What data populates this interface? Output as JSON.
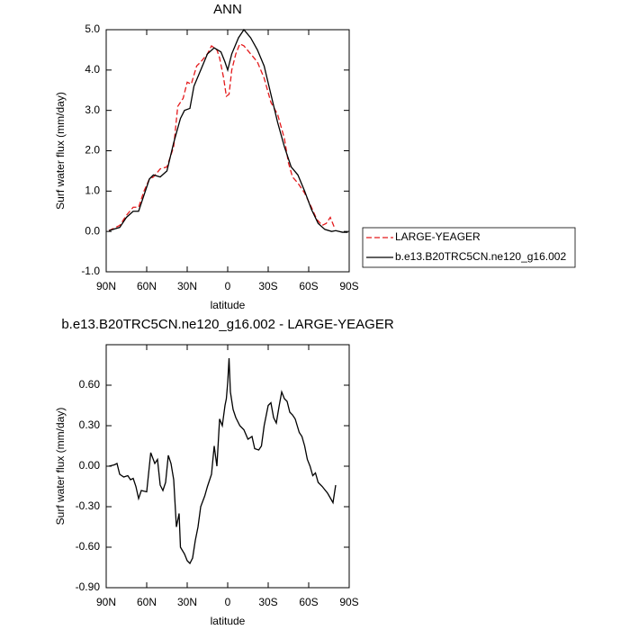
{
  "chart_data": [
    {
      "type": "line",
      "title": "ANN",
      "xlabel": "latitude",
      "ylabel": "Surf water flux (mm/day)",
      "xlim": [
        90,
        -90
      ],
      "xticks": [
        {
          "value": 90,
          "label": "90N"
        },
        {
          "value": 60,
          "label": "60N"
        },
        {
          "value": 30,
          "label": "30N"
        },
        0,
        {
          "value": -30,
          "label": "30S"
        },
        {
          "value": -60,
          "label": "60S"
        },
        {
          "value": -90,
          "label": "90S"
        }
      ],
      "ylim": [
        -1,
        5
      ],
      "yticks": [
        {
          "value": -1,
          "label": "-1.0"
        },
        {
          "value": 0,
          "label": "0.0"
        },
        {
          "value": 1,
          "label": "1.0"
        },
        {
          "value": 2,
          "label": "2.0"
        },
        {
          "value": 3,
          "label": "3.0"
        },
        {
          "value": 4,
          "label": "4.0"
        },
        {
          "value": 5,
          "label": "5.0"
        }
      ],
      "legend": "right",
      "series": [
        {
          "name": "LARGE-YEAGER",
          "color": "#e41a1c",
          "linestyle": "dashed",
          "x": [
            88,
            80,
            75,
            70,
            66,
            62,
            58,
            55,
            50,
            45,
            40,
            37,
            33,
            30,
            27,
            23,
            20,
            15,
            12,
            8,
            6,
            3,
            1,
            -1,
            -3,
            -6,
            -9,
            -12,
            -17,
            -22,
            -27,
            -32,
            -37,
            -42,
            -45,
            -48,
            -52,
            -57,
            -62,
            -66,
            -70,
            -73,
            -76,
            -79
          ],
          "values": [
            0.02,
            0.15,
            0.4,
            0.6,
            0.6,
            1.0,
            1.3,
            1.35,
            1.55,
            1.6,
            2.1,
            3.1,
            3.3,
            3.7,
            3.65,
            4.1,
            4.2,
            4.4,
            4.6,
            4.5,
            4.3,
            3.8,
            3.35,
            3.4,
            4.0,
            4.4,
            4.65,
            4.6,
            4.4,
            4.2,
            3.8,
            3.2,
            2.9,
            2.3,
            1.7,
            1.35,
            1.2,
            0.95,
            0.6,
            0.3,
            0.15,
            0.2,
            0.35,
            0.1
          ]
        },
        {
          "name": "b.e13.B20TRC5CN.ne120_g16.002",
          "color": "#000000",
          "linestyle": "solid",
          "x": [
            88,
            80,
            75,
            70,
            66,
            62,
            58,
            55,
            50,
            45,
            40,
            35,
            32,
            28,
            25,
            20,
            15,
            10,
            5,
            2,
            0,
            -3,
            -8,
            -12,
            -17,
            -22,
            -27,
            -32,
            -37,
            -42,
            -47,
            -52,
            -57,
            -62,
            -67,
            -72,
            -77,
            -80,
            -85,
            -89
          ],
          "values": [
            0.02,
            0.1,
            0.35,
            0.5,
            0.5,
            0.9,
            1.3,
            1.4,
            1.35,
            1.5,
            2.2,
            2.8,
            3.0,
            3.05,
            3.6,
            4.0,
            4.4,
            4.55,
            4.45,
            4.2,
            4.0,
            4.4,
            4.8,
            5.0,
            4.8,
            4.5,
            4.1,
            3.4,
            2.7,
            2.1,
            1.6,
            1.4,
            1.0,
            0.55,
            0.2,
            0.05,
            0.0,
            0.02,
            -0.02,
            -0.02
          ]
        }
      ]
    },
    {
      "type": "line",
      "title": "b.e13.B20TRC5CN.ne120_g16.002 - LARGE-YEAGER",
      "xlabel": "latitude",
      "ylabel": "Surf water flux (mm/day)",
      "xlim": [
        90,
        -90
      ],
      "xticks": [
        {
          "value": 90,
          "label": "90N"
        },
        {
          "value": 60,
          "label": "60N"
        },
        {
          "value": 30,
          "label": "30N"
        },
        0,
        {
          "value": -30,
          "label": "30S"
        },
        {
          "value": -60,
          "label": "60S"
        },
        {
          "value": -90,
          "label": "90S"
        }
      ],
      "ylim": [
        -0.9,
        0.9
      ],
      "yticks": [
        {
          "value": -0.9,
          "label": "-0.90"
        },
        {
          "value": -0.6,
          "label": "-0.60"
        },
        {
          "value": -0.3,
          "label": "-0.30"
        },
        {
          "value": 0,
          "label": "0.00"
        },
        {
          "value": 0.3,
          "label": "0.30"
        },
        {
          "value": 0.6,
          "label": "0.60"
        }
      ],
      "series": [
        {
          "color": "#000000",
          "linestyle": "solid",
          "x": [
            88,
            84,
            82,
            80,
            77,
            74,
            72,
            70,
            68,
            66,
            64,
            60,
            57,
            54,
            52,
            50,
            48,
            46,
            44,
            42,
            40,
            38,
            36,
            35,
            32,
            30,
            28,
            26,
            24,
            22,
            20,
            17,
            15,
            12,
            10,
            8,
            6,
            4,
            2,
            1,
            0,
            -1,
            -2,
            -4,
            -6,
            -9,
            -12,
            -15,
            -18,
            -20,
            -23,
            -25,
            -27,
            -30,
            -32,
            -34,
            -36,
            -38,
            -40,
            -42,
            -44,
            -46,
            -48,
            -50,
            -53,
            -55,
            -57,
            -59,
            -61,
            -63,
            -65,
            -67,
            -70,
            -74,
            -78,
            -80
          ],
          "values": [
            0,
            0.01,
            0.02,
            -0.06,
            -0.08,
            -0.07,
            -0.1,
            -0.09,
            -0.15,
            -0.24,
            -0.18,
            -0.19,
            0.1,
            0.02,
            0.05,
            -0.14,
            -0.18,
            -0.12,
            0.08,
            0.02,
            -0.1,
            -0.45,
            -0.35,
            -0.6,
            -0.65,
            -0.7,
            -0.72,
            -0.68,
            -0.55,
            -0.45,
            -0.3,
            -0.22,
            -0.15,
            -0.06,
            0.15,
            0,
            0.35,
            0.3,
            0.45,
            0.5,
            0.62,
            0.8,
            0.55,
            0.42,
            0.36,
            0.3,
            0.27,
            0.2,
            0.22,
            0.13,
            0.12,
            0.15,
            0.3,
            0.45,
            0.47,
            0.36,
            0.32,
            0.44,
            0.55,
            0.5,
            0.48,
            0.4,
            0.38,
            0.35,
            0.25,
            0.22,
            0.15,
            0.05,
            0,
            -0.07,
            -0.05,
            -0.12,
            -0.15,
            -0.2,
            -0.27,
            -0.14
          ]
        }
      ]
    }
  ]
}
